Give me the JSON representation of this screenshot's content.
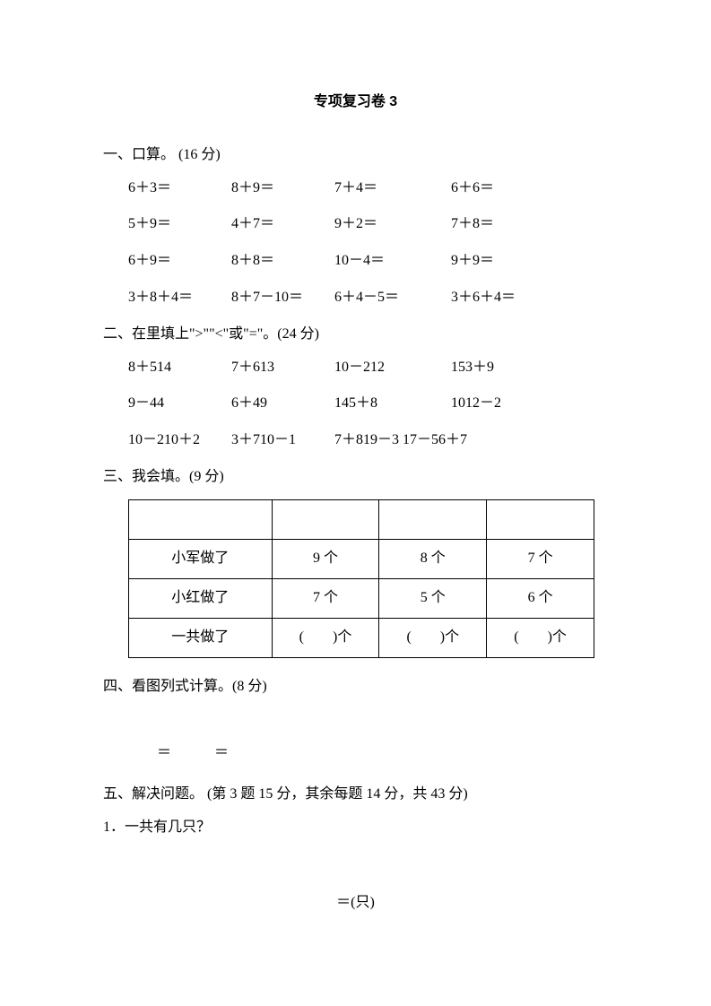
{
  "title": "专项复习卷 3",
  "s1": {
    "head": "一、口算。  (16 分)",
    "rows": [
      [
        "6＋3＝",
        "8＋9＝",
        "7＋4＝",
        "6＋6＝"
      ],
      [
        "5＋9＝",
        "4＋7＝",
        "9＋2＝",
        "7＋8＝"
      ],
      [
        "6＋9＝",
        "8＋8＝",
        "10－4＝",
        "9＋9＝"
      ],
      [
        "3＋8＋4＝",
        "8＋7－10＝",
        "6＋4－5＝",
        "3＋6＋4＝"
      ]
    ]
  },
  "s2": {
    "head": "二、在里填上\">\"\"<\"或\"=\"。(24 分)",
    "rows": [
      [
        "8＋514",
        "7＋613",
        "10－212",
        "153＋9"
      ],
      [
        "9－44",
        "6＋49",
        "145＋8",
        "1012－2"
      ],
      [
        "10－210＋2",
        "3＋710－1",
        "7＋819－3 17－56＋7",
        ""
      ]
    ]
  },
  "s3": {
    "head": "三、我会填。(9 分)",
    "table": {
      "rows": [
        [
          "",
          "",
          "",
          ""
        ],
        [
          "小军做了",
          "9 个",
          "8 个",
          "7 个"
        ],
        [
          "小红做了",
          "7 个",
          "5 个",
          "6 个"
        ],
        [
          "一共做了",
          "(　　)个",
          "(　　)个",
          "(　　)个"
        ]
      ]
    }
  },
  "s4": {
    "head": " 四、看图列式计算。(8 分)",
    "eqline": "＝　　　＝"
  },
  "s5": {
    "head": "五、解决问题。  (第 3 题 15 分，其余每题 14 分，共 43 分)",
    "q1": "1．一共有几只？",
    "ans": "＝(只)"
  }
}
